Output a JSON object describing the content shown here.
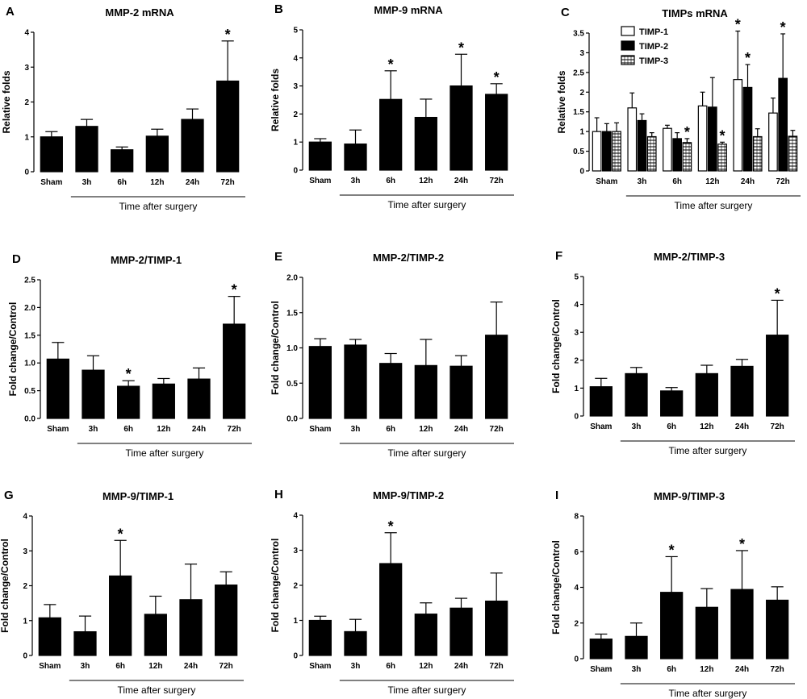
{
  "figure": {
    "xlabel": "Time after surgery"
  },
  "chart_data": [
    {
      "id": "A",
      "label": "A",
      "title": "MMP-2 mRNA",
      "type": "bar",
      "ylabel": "Relative folds",
      "xlabel": "Time after surgery",
      "ylim": [
        0,
        4
      ],
      "yticks": [
        "0",
        "1",
        "2",
        "3",
        "4"
      ],
      "categories": [
        "Sham",
        "3h",
        "6h",
        "12h",
        "24h",
        "72h"
      ],
      "series": [
        {
          "name": "MMP-2 mRNA",
          "values": [
            1.0,
            1.3,
            0.63,
            1.02,
            1.5,
            2.6
          ],
          "errors": [
            0.15,
            0.2,
            0.08,
            0.2,
            0.3,
            1.15
          ],
          "sig": [
            false,
            false,
            false,
            false,
            false,
            true
          ],
          "style": "solid"
        }
      ]
    },
    {
      "id": "B",
      "label": "B",
      "title": "MMP-9 mRNA",
      "type": "bar",
      "ylabel": "Relative folds",
      "xlabel": "Time after surgery",
      "ylim": [
        0,
        5
      ],
      "yticks": [
        "0",
        "1",
        "2",
        "3",
        "4",
        "5"
      ],
      "categories": [
        "Sham",
        "3h",
        "6h",
        "12h",
        "24h",
        "72h"
      ],
      "series": [
        {
          "name": "MMP-9 mRNA",
          "values": [
            1.0,
            0.93,
            2.52,
            1.88,
            3.0,
            2.7
          ],
          "errors": [
            0.12,
            0.5,
            1.02,
            0.65,
            1.13,
            0.38
          ],
          "sig": [
            false,
            false,
            true,
            false,
            true,
            true
          ],
          "style": "solid"
        }
      ]
    },
    {
      "id": "C",
      "label": "C",
      "title": "TIMPs mRNA",
      "type": "bar",
      "ylabel": "Relative folds",
      "xlabel": "Time after surgery",
      "ylim": [
        0,
        3.5
      ],
      "yticks": [
        "0",
        "0.5",
        "1",
        "1.5",
        "2",
        "2.5",
        "3",
        "3.5"
      ],
      "categories": [
        "Sham",
        "3h",
        "6h",
        "12h",
        "24h",
        "72h"
      ],
      "legend": "top-left",
      "series": [
        {
          "name": "TIMP-1",
          "values": [
            1.0,
            1.6,
            1.08,
            1.65,
            2.32,
            1.47
          ],
          "errors": [
            0.35,
            0.38,
            0.08,
            0.35,
            1.23,
            0.38
          ],
          "sig": [
            false,
            false,
            false,
            false,
            true,
            false
          ],
          "style": "white"
        },
        {
          "name": "TIMP-2",
          "values": [
            1.0,
            1.28,
            0.82,
            1.62,
            2.12,
            2.35
          ],
          "errors": [
            0.2,
            0.17,
            0.15,
            0.75,
            0.58,
            1.13
          ],
          "sig": [
            false,
            false,
            false,
            false,
            true,
            true
          ],
          "style": "black"
        },
        {
          "name": "TIMP-3",
          "values": [
            1.0,
            0.87,
            0.72,
            0.68,
            0.87,
            0.88
          ],
          "errors": [
            0.22,
            0.1,
            0.1,
            0.05,
            0.2,
            0.15
          ],
          "sig": [
            false,
            false,
            true,
            true,
            false,
            false
          ],
          "style": "hatch"
        }
      ]
    },
    {
      "id": "D",
      "label": "D",
      "title": "MMP-2/TIMP-1",
      "type": "bar",
      "ylabel": "Fold change/Control",
      "xlabel": "Time after surgery",
      "ylim": [
        0,
        2.5
      ],
      "yticks": [
        "0.0",
        "0.5",
        "1.0",
        "1.5",
        "2.0",
        "2.5"
      ],
      "categories": [
        "Sham",
        "3h",
        "6h",
        "12h",
        "24h",
        "72h"
      ],
      "series": [
        {
          "name": "MMP-2/TIMP-1",
          "values": [
            1.07,
            0.87,
            0.58,
            0.62,
            0.71,
            1.7
          ],
          "errors": [
            0.3,
            0.26,
            0.1,
            0.1,
            0.2,
            0.5
          ],
          "sig": [
            false,
            false,
            true,
            false,
            false,
            true
          ],
          "style": "solid"
        }
      ]
    },
    {
      "id": "E",
      "label": "E",
      "title": "MMP-2/TIMP-2",
      "type": "bar",
      "ylabel": "Fold change/Control",
      "xlabel": "Time after surgery",
      "ylim": [
        0,
        2.0
      ],
      "yticks": [
        "0.0",
        "0.5",
        "1.0",
        "1.5",
        "2.0"
      ],
      "categories": [
        "Sham",
        "3h",
        "6h",
        "12h",
        "24h",
        "72h"
      ],
      "series": [
        {
          "name": "MMP-2/TIMP-2",
          "values": [
            1.02,
            1.04,
            0.78,
            0.75,
            0.74,
            1.18
          ],
          "errors": [
            0.11,
            0.08,
            0.14,
            0.37,
            0.15,
            0.47
          ],
          "sig": [
            false,
            false,
            false,
            false,
            false,
            false
          ],
          "style": "solid"
        }
      ]
    },
    {
      "id": "F",
      "label": "F",
      "title": "MMP-2/TIMP-3",
      "type": "bar",
      "ylabel": "Fold change/Control",
      "xlabel": "Time after surgery",
      "ylim": [
        0,
        5
      ],
      "yticks": [
        "0",
        "1",
        "2",
        "3",
        "4",
        "5"
      ],
      "categories": [
        "Sham",
        "3h",
        "6h",
        "12h",
        "24h",
        "72h"
      ],
      "series": [
        {
          "name": "MMP-2/TIMP-3",
          "values": [
            1.05,
            1.52,
            0.9,
            1.52,
            1.78,
            2.9
          ],
          "errors": [
            0.3,
            0.22,
            0.12,
            0.3,
            0.25,
            1.25
          ],
          "sig": [
            false,
            false,
            false,
            false,
            false,
            true
          ],
          "style": "solid"
        }
      ]
    },
    {
      "id": "G",
      "label": "G",
      "title": "MMP-9/TIMP-1",
      "type": "bar",
      "ylabel": "Fold change/Control",
      "xlabel": "Time after surgery",
      "ylim": [
        0,
        4
      ],
      "yticks": [
        "0",
        "1",
        "2",
        "3",
        "4"
      ],
      "categories": [
        "Sham",
        "3h",
        "6h",
        "12h",
        "24h",
        "72h"
      ],
      "series": [
        {
          "name": "MMP-9/TIMP-1",
          "values": [
            1.08,
            0.68,
            2.28,
            1.18,
            1.6,
            2.02
          ],
          "errors": [
            0.38,
            0.45,
            1.02,
            0.52,
            1.02,
            0.38
          ],
          "sig": [
            false,
            false,
            true,
            false,
            false,
            false
          ],
          "style": "solid"
        }
      ]
    },
    {
      "id": "H",
      "label": "H",
      "title": "MMP-9/TIMP-2",
      "type": "bar",
      "ylabel": "Fold change/Control",
      "xlabel": "Time after surgery",
      "ylim": [
        0,
        4
      ],
      "yticks": [
        "0",
        "1",
        "2",
        "3",
        "4"
      ],
      "categories": [
        "Sham",
        "3h",
        "6h",
        "12h",
        "24h",
        "72h"
      ],
      "series": [
        {
          "name": "MMP-9/TIMP-2",
          "values": [
            1.0,
            0.68,
            2.62,
            1.18,
            1.35,
            1.55
          ],
          "errors": [
            0.12,
            0.35,
            0.88,
            0.32,
            0.28,
            0.8
          ],
          "sig": [
            false,
            false,
            true,
            false,
            false,
            false
          ],
          "style": "solid"
        }
      ]
    },
    {
      "id": "I",
      "label": "I",
      "title": "MMP-9/TIMP-3",
      "type": "bar",
      "ylabel": "Fold change/Control",
      "xlabel": "Time after surgery",
      "ylim": [
        0,
        8
      ],
      "yticks": [
        "0",
        "2",
        "4",
        "6",
        "8"
      ],
      "categories": [
        "Sham",
        "3h",
        "6h",
        "12h",
        "24h",
        "72h"
      ],
      "series": [
        {
          "name": "MMP-9/TIMP-3",
          "values": [
            1.1,
            1.25,
            3.72,
            2.88,
            3.88,
            3.28
          ],
          "errors": [
            0.28,
            0.75,
            2.0,
            1.05,
            2.18,
            0.75
          ],
          "sig": [
            false,
            false,
            true,
            false,
            true,
            false
          ],
          "style": "solid"
        }
      ]
    }
  ]
}
